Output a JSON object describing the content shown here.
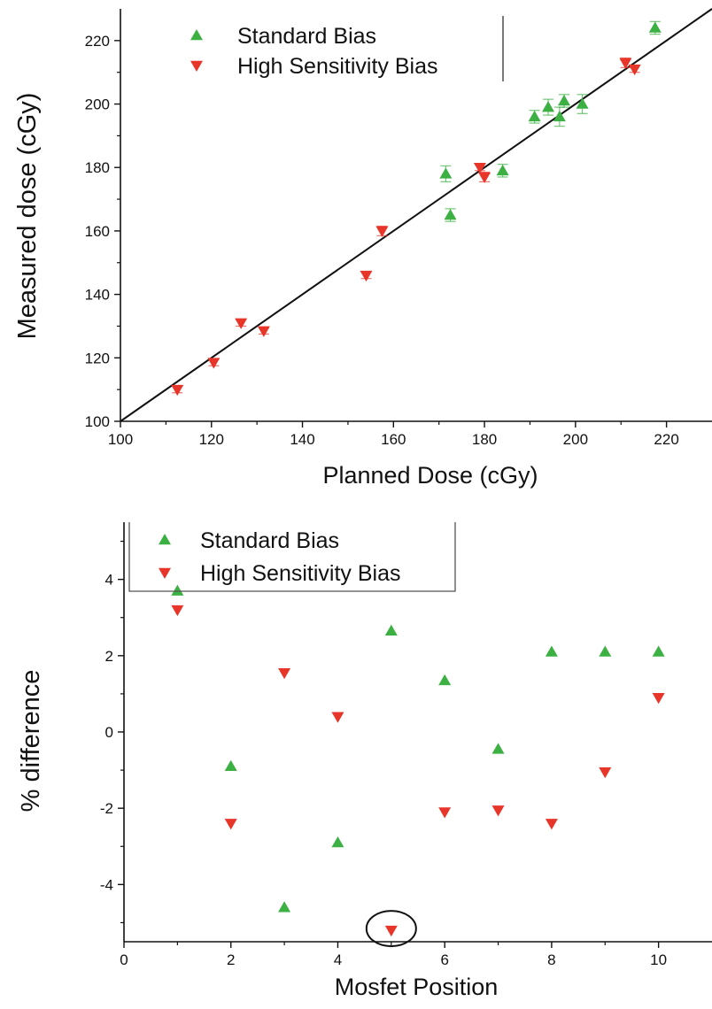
{
  "chart_data": [
    {
      "type": "scatter",
      "xlabel": "Planned Dose (cGy)",
      "ylabel": "Measured dose (cGy)",
      "xlim": [
        100,
        230
      ],
      "ylim": [
        100,
        230
      ],
      "x_ticks": [
        100,
        120,
        140,
        160,
        180,
        200,
        220
      ],
      "y_ticks": [
        100,
        120,
        140,
        160,
        180,
        200,
        220
      ],
      "identity_line": true,
      "legend_position": "top-left",
      "series": [
        {
          "name": "Standard Bias",
          "marker": "triangle-up",
          "color": "#3cb043",
          "points": [
            {
              "x": 171.5,
              "y": 178,
              "err": 2.5
            },
            {
              "x": 172.5,
              "y": 165,
              "err": 2
            },
            {
              "x": 184,
              "y": 179,
              "err": 2
            },
            {
              "x": 191,
              "y": 196,
              "err": 2
            },
            {
              "x": 194,
              "y": 199,
              "err": 2.5
            },
            {
              "x": 196.5,
              "y": 196,
              "err": 3
            },
            {
              "x": 197.5,
              "y": 201,
              "err": 2
            },
            {
              "x": 201.5,
              "y": 200,
              "err": 3
            },
            {
              "x": 217.5,
              "y": 224,
              "err": 2
            }
          ]
        },
        {
          "name": "High Sensitivity Bias",
          "marker": "triangle-down",
          "color": "#e8352a",
          "points": [
            {
              "x": 112.5,
              "y": 110,
              "err": 1
            },
            {
              "x": 120.5,
              "y": 118.5,
              "err": 1
            },
            {
              "x": 126.5,
              "y": 131,
              "err": 1
            },
            {
              "x": 131.5,
              "y": 128.5,
              "err": 1
            },
            {
              "x": 154,
              "y": 146,
              "err": 1
            },
            {
              "x": 157.5,
              "y": 160,
              "err": 1.5
            },
            {
              "x": 179,
              "y": 180,
              "err": 1
            },
            {
              "x": 180,
              "y": 177,
              "err": 1.5
            },
            {
              "x": 211,
              "y": 213,
              "err": 1.5
            },
            {
              "x": 213,
              "y": 211,
              "err": 1
            }
          ]
        }
      ]
    },
    {
      "type": "scatter",
      "xlabel": "Mosfet Position",
      "ylabel": "% difference",
      "xlim": [
        0,
        11
      ],
      "ylim": [
        -5.5,
        5.5
      ],
      "x_ticks": [
        0,
        2,
        4,
        6,
        8,
        10
      ],
      "y_ticks": [
        -4,
        -2,
        0,
        2,
        4
      ],
      "y_tick_labels": [
        "-4",
        "-2",
        "0",
        "2",
        "4"
      ],
      "legend_position": "top-left",
      "circled_point": {
        "x": 5,
        "y": -5.2
      },
      "series": [
        {
          "name": "Standard Bias",
          "marker": "triangle-up",
          "color": "#3cb043",
          "points": [
            {
              "x": 1,
              "y": 3.7
            },
            {
              "x": 2,
              "y": -0.9
            },
            {
              "x": 3,
              "y": -4.6
            },
            {
              "x": 4,
              "y": -2.9
            },
            {
              "x": 5,
              "y": 2.65
            },
            {
              "x": 6,
              "y": 1.35
            },
            {
              "x": 7,
              "y": -0.45
            },
            {
              "x": 8,
              "y": 2.1
            },
            {
              "x": 9,
              "y": 2.1
            },
            {
              "x": 10,
              "y": 2.1
            }
          ]
        },
        {
          "name": "High Sensitivity Bias",
          "marker": "triangle-down",
          "color": "#e8352a",
          "points": [
            {
              "x": 1,
              "y": 3.2
            },
            {
              "x": 2,
              "y": -2.4
            },
            {
              "x": 3,
              "y": 1.55
            },
            {
              "x": 4,
              "y": 0.4
            },
            {
              "x": 5,
              "y": -5.2
            },
            {
              "x": 6,
              "y": -2.1
            },
            {
              "x": 7,
              "y": -2.05
            },
            {
              "x": 8,
              "y": -2.4
            },
            {
              "x": 9,
              "y": -1.05
            },
            {
              "x": 10,
              "y": 0.9
            }
          ]
        }
      ]
    }
  ]
}
